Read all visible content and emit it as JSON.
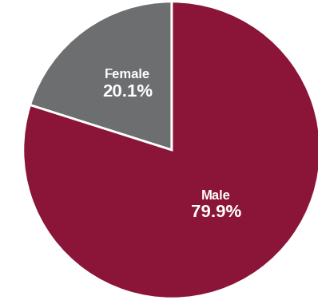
{
  "chart_data": {
    "type": "pie",
    "categories": [
      "Female",
      "Male"
    ],
    "values": [
      20.1,
      79.9
    ],
    "value_labels": [
      "20.1%",
      "79.9%"
    ],
    "colors": [
      "#6d6e70",
      "#8b1538"
    ]
  }
}
